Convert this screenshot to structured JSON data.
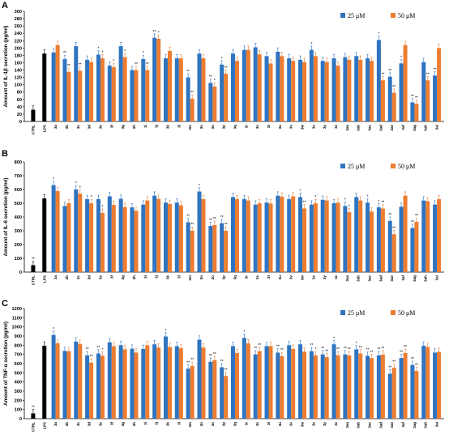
{
  "chart_data": [
    {
      "type": "bar",
      "panel": "A",
      "ylabel": "Amount of IL-1β secretion  (pg/ml)",
      "ylim": [
        0,
        300
      ],
      "yticks": [
        0,
        20,
        40,
        60,
        80,
        100,
        120,
        140,
        160,
        180,
        200,
        220,
        240,
        260,
        280,
        300
      ],
      "legend": [
        "25 μM",
        "50 μM"
      ],
      "legend_position": "top-right",
      "controls": [
        {
          "label": "CTRL",
          "value": 32,
          "marks": ""
        },
        {
          "label": "LPS",
          "value": 185,
          "marks": ""
        }
      ],
      "categories": [
        "3a",
        "3b",
        "3c",
        "3d",
        "3e",
        "3f",
        "3g",
        "3h",
        "3i",
        "3j",
        "3k",
        "3l",
        "3m",
        "3n",
        "3o",
        "3p",
        "3q",
        "3r",
        "3s",
        "3t",
        "3u",
        "3v",
        "3w",
        "3x",
        "3y",
        "3z",
        "3aa",
        "3ab",
        "3ac",
        "3ad",
        "3ae",
        "3af",
        "3ag",
        "3ah",
        "3ai"
      ],
      "series": [
        {
          "name": "25 μM",
          "color": "#2f74c0",
          "values": [
            188,
            170,
            205,
            168,
            182,
            152,
            205,
            140,
            170,
            228,
            172,
            172,
            120,
            185,
            105,
            155,
            185,
            195,
            202,
            178,
            190,
            172,
            168,
            195,
            165,
            172,
            175,
            178,
            172,
            222,
            122,
            158,
            52,
            162,
            125
          ],
          "marks": [
            "",
            "**",
            "",
            "",
            "*",
            "",
            "",
            "",
            "*",
            "**",
            "",
            "",
            "**",
            "",
            "**",
            "*",
            "",
            "",
            "",
            "",
            "",
            "",
            "",
            "*",
            "",
            "",
            "",
            "",
            "",
            "*",
            "**",
            "*",
            "**",
            "",
            "**"
          ]
        },
        {
          "name": "50 μM",
          "color": "#ed7d31",
          "values": [
            208,
            135,
            138,
            162,
            172,
            148,
            175,
            140,
            140,
            225,
            192,
            172,
            62,
            172,
            95,
            130,
            165,
            195,
            183,
            158,
            178,
            165,
            162,
            178,
            162,
            152,
            168,
            168,
            165,
            112,
            78,
            208,
            48,
            112,
            200
          ],
          "marks": [
            "",
            "**",
            "**",
            "",
            "*",
            "*",
            "*",
            "**",
            "**",
            "*",
            "",
            "",
            "**",
            "",
            "*",
            "**",
            "",
            "",
            "",
            "",
            "",
            "",
            "",
            "",
            "",
            "",
            "",
            "",
            "",
            "**",
            "**",
            "",
            "**",
            "**",
            ""
          ]
        }
      ]
    },
    {
      "type": "bar",
      "panel": "B",
      "ylabel": "Amount of IL-6 secretion  (pg/ml)",
      "ylim": [
        0,
        800
      ],
      "yticks": [
        0,
        100,
        200,
        300,
        400,
        500,
        600,
        700,
        800
      ],
      "legend": [
        "25 μM",
        "50 μM"
      ],
      "legend_position": "top-right",
      "controls": [
        {
          "label": "CTRL",
          "value": 50,
          "marks": "**"
        },
        {
          "label": "LPS",
          "value": 535,
          "marks": ""
        }
      ],
      "categories": [
        "3a",
        "3b",
        "3c",
        "3d",
        "3e",
        "3f",
        "3g",
        "3h",
        "3i",
        "3j",
        "3k",
        "3l",
        "3m",
        "3n",
        "3o",
        "3p",
        "3q",
        "3r",
        "3s",
        "3t",
        "3u",
        "3v",
        "3w",
        "3x",
        "3y",
        "3z",
        "3aa",
        "3ab",
        "3ac",
        "3ad",
        "3ae",
        "3af",
        "3ag",
        "3ah",
        "3ai"
      ],
      "series": [
        {
          "name": "25 μM",
          "color": "#2f74c0",
          "values": [
            632,
            480,
            600,
            530,
            530,
            550,
            532,
            470,
            490,
            555,
            505,
            505,
            362,
            585,
            335,
            355,
            545,
            530,
            490,
            505,
            555,
            530,
            545,
            490,
            525,
            500,
            480,
            545,
            505,
            470,
            372,
            475,
            320,
            520,
            490
          ],
          "marks": [
            "*",
            "",
            "*",
            "",
            "",
            "",
            "",
            "",
            "",
            "",
            "",
            "",
            "**",
            "*",
            "**",
            "**",
            "",
            "",
            "",
            "",
            "",
            "",
            "*",
            "",
            "",
            "",
            "*",
            "",
            "*",
            "*",
            "**",
            "",
            "**",
            "",
            ""
          ]
        },
        {
          "name": "50 μM",
          "color": "#ed7d31",
          "values": [
            588,
            500,
            570,
            500,
            430,
            488,
            472,
            445,
            520,
            532,
            495,
            485,
            300,
            530,
            342,
            300,
            530,
            520,
            500,
            498,
            548,
            550,
            462,
            500,
            520,
            505,
            435,
            520,
            440,
            462,
            275,
            555,
            365,
            515,
            530
          ],
          "marks": [
            "",
            "",
            "*",
            "*",
            "*",
            "",
            "",
            "",
            "",
            "",
            "",
            "",
            "**",
            "",
            "**",
            "**",
            "",
            "",
            "",
            "",
            "",
            "",
            "**",
            "*",
            "",
            "",
            "*",
            "",
            "",
            "**",
            "**",
            "",
            "**",
            "",
            ""
          ]
        }
      ]
    },
    {
      "type": "bar",
      "panel": "C",
      "ylabel": "Amount of TNF-α secretion  (pg/ml)",
      "ylim": [
        0,
        1200
      ],
      "yticks": [
        0,
        100,
        200,
        300,
        400,
        500,
        600,
        700,
        800,
        900,
        1000,
        1100,
        1200
      ],
      "legend": [
        "25 μM",
        "50 μM"
      ],
      "legend_position": "top-right",
      "controls": [
        {
          "label": "CTRL",
          "value": 58,
          "marks": "**"
        },
        {
          "label": "LPS",
          "value": 795,
          "marks": ""
        }
      ],
      "categories": [
        "3a",
        "3b",
        "3c",
        "3d",
        "3e",
        "3f",
        "3g",
        "3h",
        "3i",
        "3j",
        "3k",
        "3l",
        "3m",
        "3n",
        "3o",
        "3p",
        "3q",
        "3r",
        "3s",
        "3t",
        "3u",
        "3v",
        "3w",
        "3x",
        "3y",
        "3z",
        "3aa",
        "3ab",
        "3ac",
        "3ad",
        "3ae",
        "3af",
        "3ag",
        "3ah",
        "3ai"
      ],
      "series": [
        {
          "name": "25 μM",
          "color": "#2f74c0",
          "values": [
            912,
            738,
            840,
            690,
            710,
            832,
            800,
            762,
            760,
            810,
            895,
            790,
            545,
            860,
            620,
            560,
            790,
            880,
            700,
            790,
            720,
            800,
            810,
            735,
            700,
            810,
            700,
            755,
            685,
            690,
            490,
            660,
            585,
            795,
            720
          ],
          "marks": [
            "*",
            "",
            "",
            "**",
            "**",
            "",
            "",
            "",
            "",
            "",
            "*",
            "",
            "**",
            "",
            "**",
            "**",
            "",
            "*",
            "**",
            "",
            "**",
            "",
            "",
            "**",
            "**",
            "*",
            "**",
            "*",
            "**",
            "**",
            "**",
            "**",
            "**",
            "",
            ""
          ]
        },
        {
          "name": "50 μM",
          "color": "#ed7d31",
          "values": [
            822,
            735,
            815,
            610,
            685,
            790,
            755,
            720,
            800,
            775,
            780,
            768,
            575,
            775,
            638,
            465,
            715,
            820,
            735,
            790,
            680,
            760,
            730,
            690,
            670,
            690,
            690,
            710,
            660,
            698,
            555,
            715,
            520,
            780,
            728
          ],
          "marks": [
            "",
            "",
            "",
            "**",
            "*",
            "",
            "",
            "",
            "",
            "",
            "",
            "",
            "**",
            "",
            "**",
            "**",
            "",
            "",
            "**",
            "",
            "**",
            "",
            "",
            "*",
            "**",
            "**",
            "**",
            "**",
            "**",
            "**",
            "**",
            "**",
            "**",
            "",
            ""
          ]
        }
      ]
    }
  ]
}
